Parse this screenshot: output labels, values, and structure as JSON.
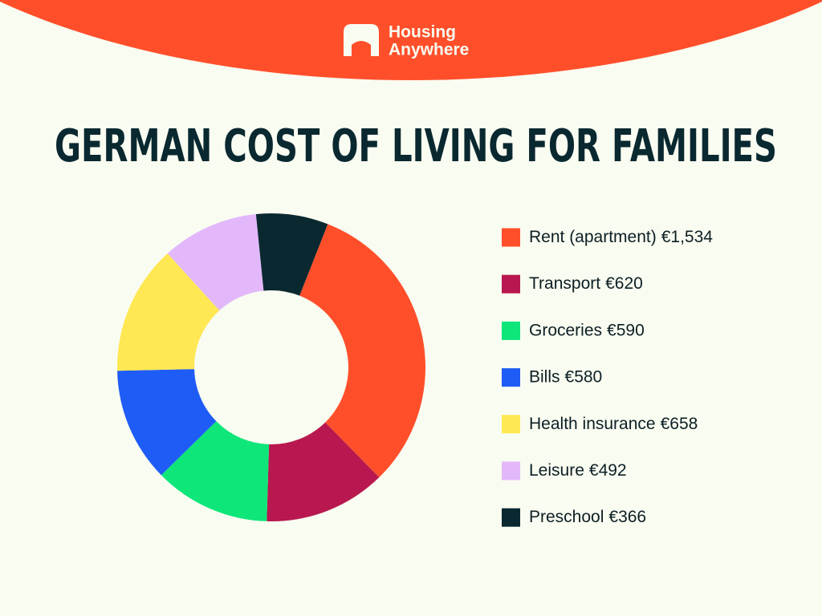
{
  "brand": [
    "Housing",
    "Anywhere"
  ],
  "chart_data": {
    "type": "donut",
    "title": "GERMAN COST OF LIVING FOR FAMILIES",
    "categories": [
      "Rent (apartment)",
      "Transport",
      "Groceries",
      "Bills",
      "Health insurance",
      "Leisure",
      "Preschool"
    ],
    "values": [
      1534,
      620,
      590,
      580,
      658,
      492,
      366
    ],
    "value_labels": [
      "€1,534",
      "€620",
      "€590",
      "€580",
      "€658",
      "€492",
      "€366"
    ],
    "colors": [
      "#ff4f2a",
      "#b8184f",
      "#0ee67a",
      "#1f5cf5",
      "#ffe853",
      "#e2b8fb",
      "#0a2830"
    ]
  }
}
